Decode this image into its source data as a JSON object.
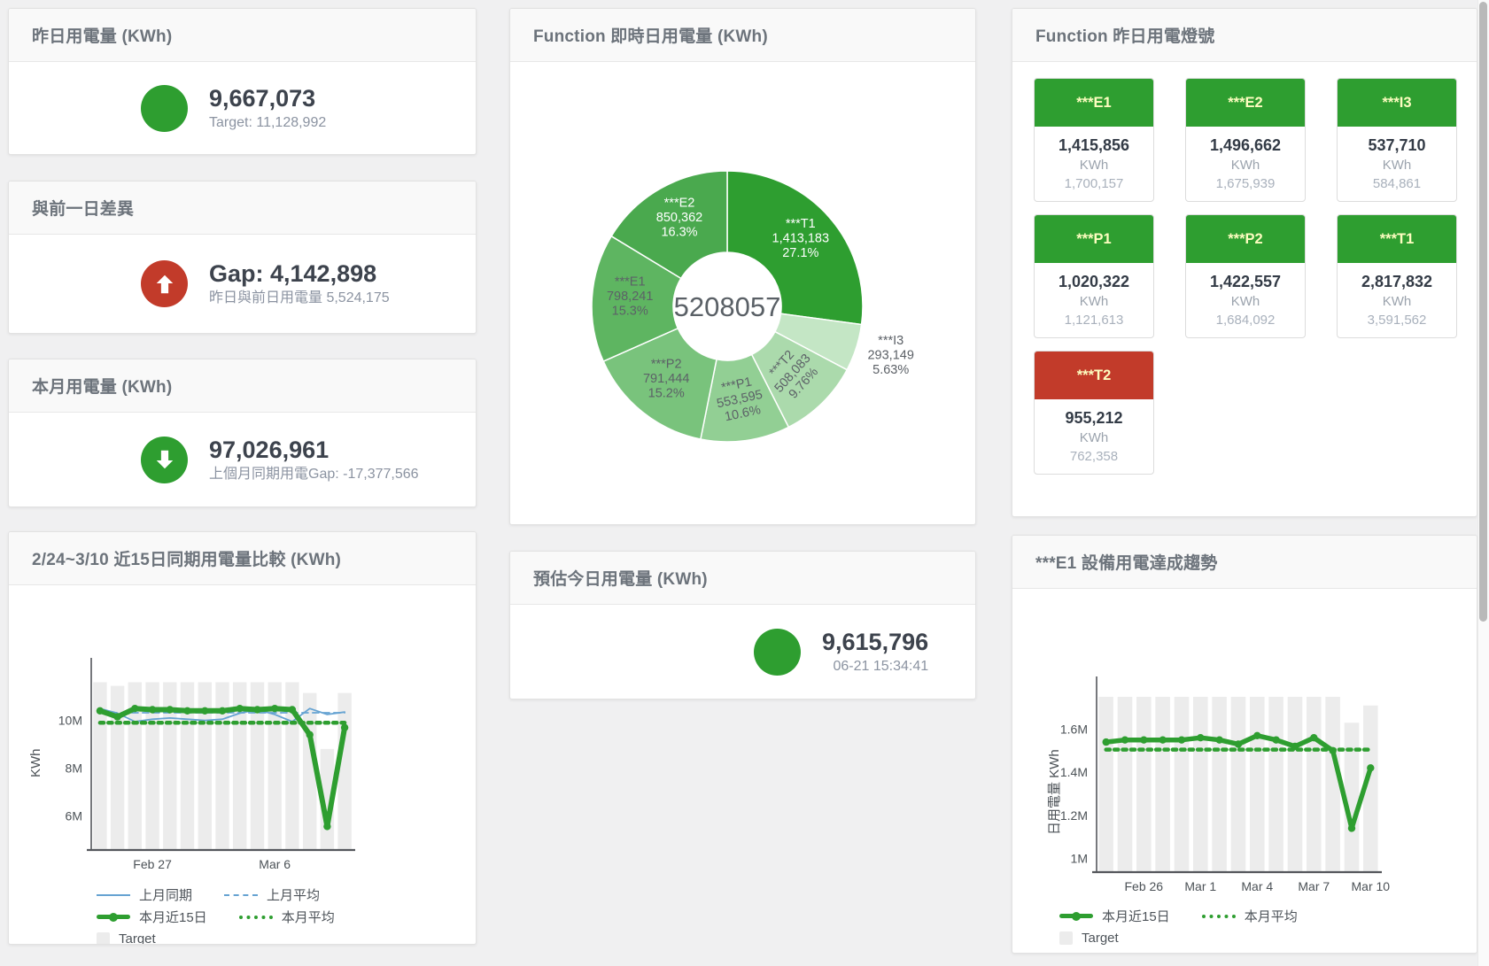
{
  "colors": {
    "green": "#2e9e30",
    "red": "#c23b2a",
    "blue": "#66a3d2",
    "bar_gray": "#ececec",
    "tile_header_text": "#fdfdc0"
  },
  "stats": {
    "yesterday": {
      "title": "昨日用電量 (KWh)",
      "value": "9,667,073",
      "subtitle": "Target: 11,128,992",
      "icon": "circle",
      "icon_color": "#2e9e30"
    },
    "gap": {
      "title": "與前一日差異",
      "value": "Gap: 4,142,898",
      "subtitle": "昨日與前日用電量 5,524,175",
      "icon": "arrow-up",
      "icon_color": "#c23b2a"
    },
    "month": {
      "title": "本月用電量 (KWh)",
      "value": "97,026,961",
      "subtitle": "上個月同期用電Gap: -17,377,566",
      "icon": "arrow-down",
      "icon_color": "#2e9e30"
    },
    "estimate": {
      "title": "預估今日用電量 (KWh)",
      "value": "9,615,796",
      "subtitle": "06-21 15:34:41",
      "icon": "circle",
      "icon_color": "#2e9e30"
    }
  },
  "lights": {
    "title": "Function 昨日用電燈號",
    "unit": "KWh",
    "tiles": [
      {
        "name": "***E1",
        "value": "1,415,856",
        "target": "1,700,157",
        "status": "green"
      },
      {
        "name": "***E2",
        "value": "1,496,662",
        "target": "1,675,939",
        "status": "green"
      },
      {
        "name": "***I3",
        "value": "537,710",
        "target": "584,861",
        "status": "green"
      },
      {
        "name": "***P1",
        "value": "1,020,322",
        "target": "1,121,613",
        "status": "green"
      },
      {
        "name": "***P2",
        "value": "1,422,557",
        "target": "1,684,092",
        "status": "green"
      },
      {
        "name": "***T1",
        "value": "2,817,832",
        "target": "3,591,562",
        "status": "green"
      },
      {
        "name": "***T2",
        "value": "955,212",
        "target": "762,358",
        "status": "red"
      }
    ]
  },
  "chart_data": [
    {
      "type": "pie",
      "title": "Function 即時日用電量 (KWh)",
      "center_label": "5208057",
      "units": "KWh",
      "segments": [
        {
          "name": "***T1",
          "value": 1413183,
          "pct_label": "27.1%",
          "color": "#2e9e30",
          "text_color": "#ffffff"
        },
        {
          "name": "***I3",
          "value": 293149,
          "pct_label": "5.63%",
          "color": "#c4e6c5",
          "text_color": "#5c6167",
          "outside": true
        },
        {
          "name": "***T2",
          "value": 508083,
          "pct_label": "9.76%",
          "color": "#abdaac",
          "text_color": "#5c6167",
          "rotate": -48
        },
        {
          "name": "***P1",
          "value": 553595,
          "pct_label": "10.6%",
          "color": "#92cf94",
          "text_color": "#5c6167",
          "rotate": -12
        },
        {
          "name": "***P2",
          "value": 791444,
          "pct_label": "15.2%",
          "color": "#79c37c",
          "text_color": "#5c6167"
        },
        {
          "name": "***E1",
          "value": 798241,
          "pct_label": "15.3%",
          "color": "#5eb561",
          "text_color": "#5c6167"
        },
        {
          "name": "***E2",
          "value": 850362,
          "pct_label": "16.3%",
          "color": "#4aa94e",
          "text_color": "#ffffff"
        }
      ]
    },
    {
      "type": "line",
      "title": "2/24~3/10 近15日同期用電量比較 (KWh)",
      "ylabel": "KWh",
      "y_unit": "M",
      "ylim": [
        4.6,
        12.4
      ],
      "grid": false,
      "y_ticks": [
        {
          "v": 6,
          "label": "6M"
        },
        {
          "v": 8,
          "label": "8M"
        },
        {
          "v": 10,
          "label": "10M"
        }
      ],
      "x_ticks": [
        {
          "i": 3,
          "label": "Feb 27"
        },
        {
          "i": 10,
          "label": "Mar 6"
        }
      ],
      "bars": {
        "name": "Target",
        "color": "#ececec",
        "values": [
          11.6,
          11.45,
          11.6,
          11.6,
          11.6,
          11.6,
          11.6,
          11.6,
          11.6,
          11.6,
          11.6,
          11.6,
          11.15,
          8.8,
          11.15
        ]
      },
      "series": [
        {
          "name": "上月同期",
          "color": "#66a3d2",
          "width": 1.8,
          "style": "solid",
          "values": [
            10.5,
            10.3,
            9.95,
            10.05,
            10.1,
            10.05,
            10.0,
            10.05,
            10.3,
            10.45,
            10.25,
            9.95,
            10.5,
            10.25,
            10.35
          ]
        },
        {
          "name": "上月平均",
          "color": "#66a3d2",
          "width": 1.8,
          "style": "dashed",
          "values": [
            10.32,
            10.32,
            10.32,
            10.32,
            10.32,
            10.32,
            10.32,
            10.32,
            10.32,
            10.32,
            10.32,
            10.32,
            10.32,
            10.32,
            10.32
          ]
        },
        {
          "name": "本月平均",
          "color": "#2e9e30",
          "width": 4.5,
          "style": "dotted",
          "values": [
            9.9,
            9.9,
            9.9,
            9.9,
            9.9,
            9.9,
            9.9,
            9.9,
            9.9,
            9.9,
            9.9,
            9.9,
            9.9,
            9.9,
            9.9
          ]
        },
        {
          "name": "本月近15日",
          "color": "#2e9e30",
          "width": 6,
          "style": "solid",
          "marker": true,
          "values": [
            10.4,
            10.15,
            10.5,
            10.45,
            10.45,
            10.4,
            10.4,
            10.4,
            10.5,
            10.45,
            10.5,
            10.45,
            9.4,
            5.55,
            9.7
          ]
        }
      ],
      "legend_rows": [
        [
          {
            "label": "上月同期",
            "swatch": "line-blue"
          },
          {
            "label": "上月平均",
            "swatch": "dash-blue"
          }
        ],
        [
          {
            "label": "本月近15日",
            "swatch": "thick-green"
          },
          {
            "label": "本月平均",
            "swatch": "dot-green"
          }
        ],
        [
          {
            "label": "Target",
            "swatch": "box-gray"
          }
        ]
      ]
    },
    {
      "type": "line",
      "title": "***E1 設備用電達成趨勢",
      "ylabel": "日用電量 KWh",
      "y_unit": "M",
      "ylim": [
        0.94,
        1.82
      ],
      "grid": false,
      "y_ticks": [
        {
          "v": 1,
          "label": "1M"
        },
        {
          "v": 1.2,
          "label": "1.2M"
        },
        {
          "v": 1.4,
          "label": "1.4M"
        },
        {
          "v": 1.6,
          "label": "1.6M"
        }
      ],
      "x_ticks": [
        {
          "i": 2,
          "label": "Feb 26"
        },
        {
          "i": 5,
          "label": "Mar 1"
        },
        {
          "i": 8,
          "label": "Mar 4"
        },
        {
          "i": 11,
          "label": "Mar 7"
        },
        {
          "i": 14,
          "label": "Mar 10"
        }
      ],
      "bars": {
        "name": "Target",
        "color": "#ececec",
        "values": [
          1.75,
          1.75,
          1.75,
          1.75,
          1.75,
          1.75,
          1.75,
          1.75,
          1.75,
          1.75,
          1.75,
          1.75,
          1.75,
          1.63,
          1.71
        ]
      },
      "series": [
        {
          "name": "本月平均",
          "color": "#2e9e30",
          "width": 4.5,
          "style": "dotted",
          "values": [
            1.505,
            1.505,
            1.505,
            1.505,
            1.505,
            1.505,
            1.505,
            1.505,
            1.505,
            1.505,
            1.505,
            1.505,
            1.505,
            1.505,
            1.505
          ]
        },
        {
          "name": "本月近15日",
          "color": "#2e9e30",
          "width": 5.5,
          "style": "solid",
          "marker": true,
          "values": [
            1.54,
            1.55,
            1.55,
            1.55,
            1.55,
            1.56,
            1.55,
            1.53,
            1.57,
            1.55,
            1.52,
            1.56,
            1.5,
            1.14,
            1.42
          ]
        }
      ],
      "legend_rows": [
        [
          {
            "label": "本月近15日",
            "swatch": "thick-green"
          },
          {
            "label": "本月平均",
            "swatch": "dot-green"
          }
        ],
        [
          {
            "label": "Target",
            "swatch": "box-gray"
          }
        ]
      ]
    }
  ]
}
